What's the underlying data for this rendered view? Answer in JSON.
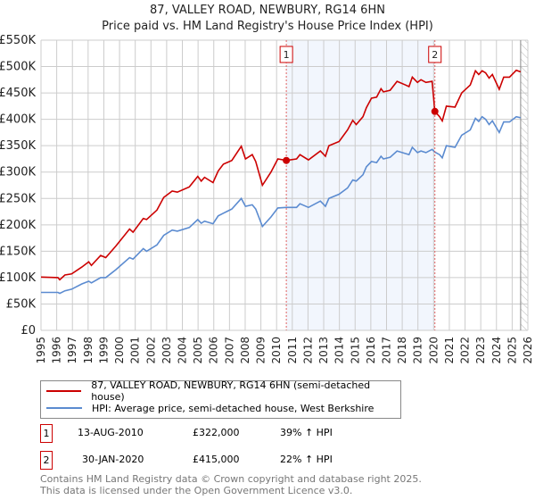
{
  "chart_data": {
    "type": "line",
    "title": "87, VALLEY ROAD, NEWBURY, RG14 6HN",
    "subtitle": "Price paid vs. HM Land Registry's House Price Index (HPI)",
    "xlim": [
      1995,
      2026
    ],
    "ylim": [
      0,
      550000
    ],
    "y_ticks": [
      0,
      50000,
      100000,
      150000,
      200000,
      250000,
      300000,
      350000,
      400000,
      450000,
      500000,
      550000
    ],
    "y_tick_labels": [
      "£0",
      "£50K",
      "£100K",
      "£150K",
      "£200K",
      "£250K",
      "£300K",
      "£350K",
      "£400K",
      "£450K",
      "£500K",
      "£550K"
    ],
    "x_tick_labels": [
      "1995",
      "1996",
      "1997",
      "1998",
      "1999",
      "2000",
      "2001",
      "2002",
      "2003",
      "2004",
      "2005",
      "2006",
      "2007",
      "2008",
      "2009",
      "2010",
      "2011",
      "2012",
      "2013",
      "2014",
      "2015",
      "2016",
      "2017",
      "2018",
      "2019",
      "2020",
      "2021",
      "2022",
      "2023",
      "2024",
      "2025",
      "2026"
    ],
    "grid": true,
    "x": [
      1995.0,
      1996.08,
      1996.19,
      1996.52,
      1996.95,
      1997.6,
      1998.04,
      1998.21,
      1998.8,
      1999.12,
      1999.77,
      2000.64,
      2000.86,
      2001.51,
      2001.72,
      2002.38,
      2002.81,
      2003.35,
      2003.68,
      2004.44,
      2004.98,
      2005.2,
      2005.41,
      2005.95,
      2006.28,
      2006.61,
      2007.15,
      2007.75,
      2008.02,
      2008.45,
      2008.67,
      2009.1,
      2009.64,
      2010.08,
      2010.62,
      2011.27,
      2011.49,
      2012.03,
      2012.79,
      2013.11,
      2013.33,
      2013.98,
      2014.52,
      2014.85,
      2015.07,
      2015.5,
      2015.72,
      2016.04,
      2016.37,
      2016.65,
      2016.8,
      2017.23,
      2017.67,
      2018.21,
      2018.43,
      2018.64,
      2018.97,
      2019.19,
      2019.51,
      2019.9,
      2020.08,
      2020.38,
      2020.55,
      2020.81,
      2021.36,
      2021.79,
      2022.33,
      2022.66,
      2022.87,
      2023.09,
      2023.31,
      2023.53,
      2023.74,
      2024.18,
      2024.46,
      2024.83,
      2025.26,
      2025.54
    ],
    "series": [
      {
        "name": "87, VALLEY ROAD, NEWBURY, RG14 6HN (semi-detached house)",
        "color": "#cc0000",
        "values": [
          101000,
          100000,
          96000,
          105000,
          107000,
          120000,
          130000,
          123000,
          142000,
          138000,
          160000,
          192000,
          186000,
          212000,
          210000,
          228000,
          252000,
          264000,
          262000,
          272000,
          292000,
          283000,
          290000,
          280000,
          302000,
          315000,
          322000,
          349000,
          325000,
          333000,
          320000,
          275000,
          300000,
          325000,
          322000,
          325000,
          333000,
          323000,
          340000,
          330000,
          350000,
          358000,
          380000,
          398000,
          390000,
          405000,
          422000,
          440000,
          442000,
          458000,
          452000,
          455000,
          472000,
          465000,
          462000,
          480000,
          470000,
          475000,
          470000,
          472000,
          415000,
          405000,
          397000,
          425000,
          423000,
          450000,
          465000,
          492000,
          485000,
          492000,
          488000,
          478000,
          485000,
          457000,
          480000,
          480000,
          493000,
          490000
        ]
      },
      {
        "name": "HPI: Average price, semi-detached house, West Berkshire",
        "color": "#5b8bd0",
        "values": [
          72000,
          72000,
          70000,
          75000,
          78000,
          88000,
          93000,
          90000,
          100000,
          100000,
          115000,
          138000,
          135000,
          155000,
          150000,
          162000,
          180000,
          190000,
          188000,
          195000,
          210000,
          203000,
          207000,
          202000,
          217000,
          222000,
          230000,
          250000,
          235000,
          238000,
          230000,
          197000,
          215000,
          232000,
          233000,
          233000,
          240000,
          233000,
          245000,
          235000,
          250000,
          258000,
          270000,
          285000,
          283000,
          295000,
          310000,
          320000,
          318000,
          330000,
          325000,
          328000,
          340000,
          335000,
          333000,
          347000,
          337000,
          340000,
          337000,
          343000,
          338000,
          333000,
          327000,
          350000,
          347000,
          370000,
          380000,
          402000,
          396000,
          405000,
          400000,
          390000,
          397000,
          375000,
          395000,
          395000,
          405000,
          403000
        ]
      }
    ],
    "shaded_range": [
      2010.62,
      2020.08
    ],
    "forecast_hatch_from": 2025.54,
    "sales": [
      {
        "label": "1",
        "x": 2010.62,
        "value": 322000,
        "date": "13-AUG-2010",
        "price": "£322,000",
        "hpi": "39% ↑ HPI"
      },
      {
        "label": "2",
        "x": 2020.08,
        "value": 415000,
        "date": "30-JAN-2020",
        "price": "£415,000",
        "hpi": "22% ↑ HPI"
      }
    ],
    "legend_position": "bottom"
  },
  "footer": {
    "line1": "Contains HM Land Registry data © Crown copyright and database right 2025.",
    "line2": "This data is licensed under the Open Government Licence v3.0."
  }
}
